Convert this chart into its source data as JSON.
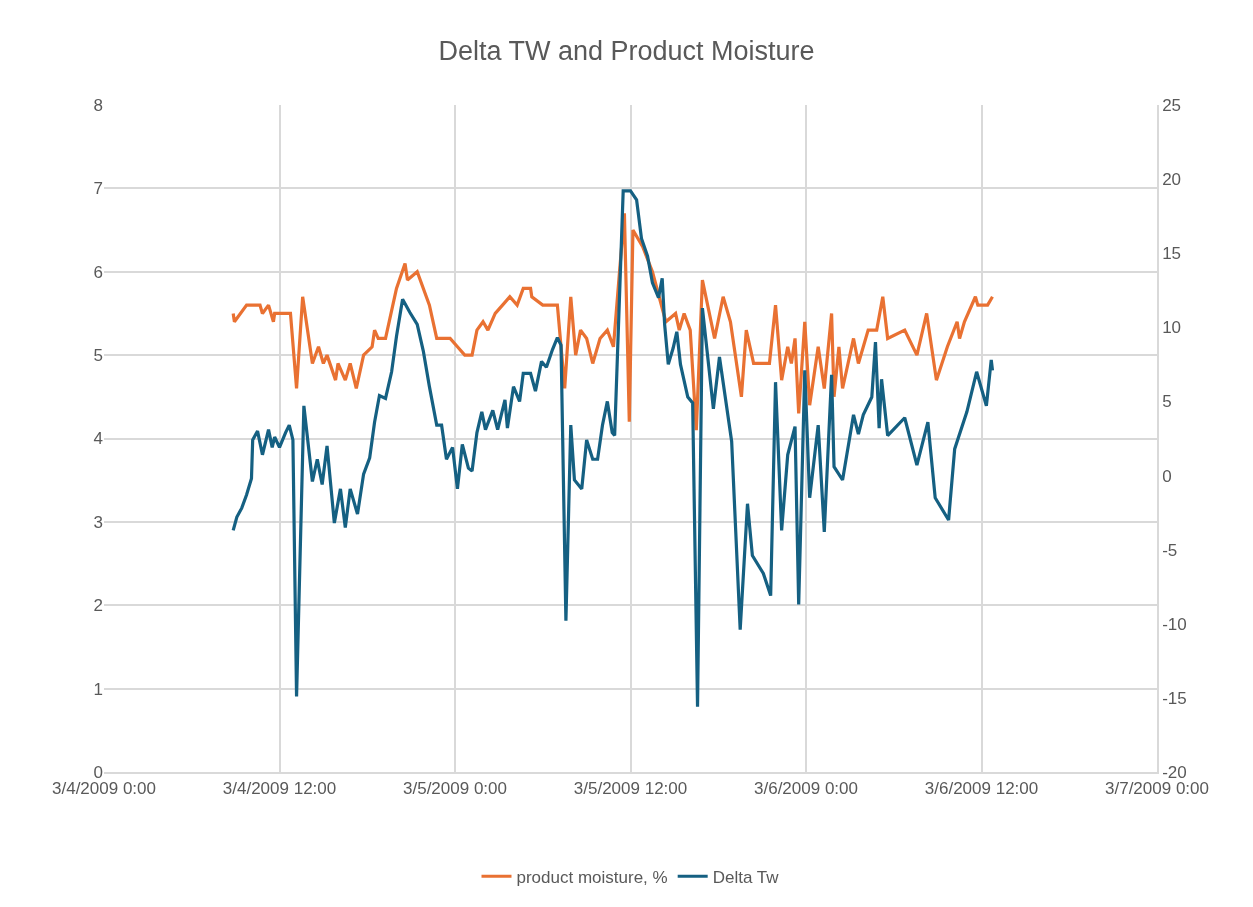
{
  "chart_data": {
    "type": "line",
    "title": "Delta TW and Product Moisture",
    "xlim": [
      "2009-03-04T00:00",
      "2009-03-07T00:00"
    ],
    "xticks": [
      {
        "value": "2009-03-04T00:00",
        "label": "3/4/2009 0:00"
      },
      {
        "value": "2009-03-04T12:00",
        "label": "3/4/2009 12:00"
      },
      {
        "value": "2009-03-05T00:00",
        "label": "3/5/2009 0:00"
      },
      {
        "value": "2009-03-05T12:00",
        "label": "3/5/2009 12:00"
      },
      {
        "value": "2009-03-06T00:00",
        "label": "3/6/2009 0:00"
      },
      {
        "value": "2009-03-06T12:00",
        "label": "3/6/2009 12:00"
      },
      {
        "value": "2009-03-07T00:00",
        "label": "3/7/2009 0:00"
      }
    ],
    "ylim": [
      0,
      8
    ],
    "yticks": [
      0,
      1,
      2,
      3,
      4,
      5,
      6,
      7,
      8
    ],
    "y2lim": [
      -20,
      25
    ],
    "y2ticks": [
      -20,
      -15,
      -10,
      -5,
      0,
      5,
      10,
      15,
      20,
      25
    ],
    "grid": true,
    "legend": "bottom",
    "marker": "none",
    "line_style": "solid",
    "series": [
      {
        "name": "product moisture, %",
        "color": "#e97132",
        "x": [
          "2009-03-04T08:50",
          "2009-03-04T08:55",
          "2009-03-04T09:45",
          "2009-03-04T10:40",
          "2009-03-04T10:50",
          "2009-03-04T11:15",
          "2009-03-04T11:35",
          "2009-03-04T11:40",
          "2009-03-04T12:45",
          "2009-03-04T13:10",
          "2009-03-04T13:35",
          "2009-03-04T14:15",
          "2009-03-04T14:40",
          "2009-03-04T15:00",
          "2009-03-04T15:15",
          "2009-03-04T15:50",
          "2009-03-04T16:00",
          "2009-03-04T16:30",
          "2009-03-04T16:50",
          "2009-03-04T17:15",
          "2009-03-04T17:45",
          "2009-03-04T18:20",
          "2009-03-04T18:30",
          "2009-03-04T18:45",
          "2009-03-04T19:15",
          "2009-03-04T20:00",
          "2009-03-04T20:35",
          "2009-03-04T20:45",
          "2009-03-04T21:25",
          "2009-03-04T22:15",
          "2009-03-04T22:45",
          "2009-03-04T23:40",
          "2009-03-05T00:10",
          "2009-03-05T00:40",
          "2009-03-05T01:10",
          "2009-03-05T01:30",
          "2009-03-05T01:55",
          "2009-03-05T02:15",
          "2009-03-05T02:45",
          "2009-03-05T03:15",
          "2009-03-05T03:45",
          "2009-03-05T04:15",
          "2009-03-05T04:40",
          "2009-03-05T05:10",
          "2009-03-05T05:15",
          "2009-03-05T06:00",
          "2009-03-05T07:00",
          "2009-03-05T07:30",
          "2009-03-05T07:55",
          "2009-03-05T08:15",
          "2009-03-05T08:35",
          "2009-03-05T09:00",
          "2009-03-05T09:25",
          "2009-03-05T09:55",
          "2009-03-05T10:25",
          "2009-03-05T10:50",
          "2009-03-05T11:15",
          "2009-03-05T11:35",
          "2009-03-05T11:55",
          "2009-03-05T12:10",
          "2009-03-05T12:50",
          "2009-03-05T13:30",
          "2009-03-05T14:25",
          "2009-03-05T15:05",
          "2009-03-05T15:20",
          "2009-03-05T15:40",
          "2009-03-05T16:05",
          "2009-03-05T16:30",
          "2009-03-05T16:55",
          "2009-03-05T17:45",
          "2009-03-05T18:20",
          "2009-03-05T18:50",
          "2009-03-05T19:05",
          "2009-03-05T19:35",
          "2009-03-05T19:55",
          "2009-03-05T20:25",
          "2009-03-05T21:30",
          "2009-03-05T21:55",
          "2009-03-05T22:20",
          "2009-03-05T22:45",
          "2009-03-05T23:00",
          "2009-03-05T23:15",
          "2009-03-05T23:30",
          "2009-03-05T23:55",
          "2009-03-06T00:15",
          "2009-03-06T00:50",
          "2009-03-06T01:15",
          "2009-03-06T01:45",
          "2009-03-06T01:55",
          "2009-03-06T02:15",
          "2009-03-06T02:30",
          "2009-03-06T03:15",
          "2009-03-06T03:35",
          "2009-03-06T04:15",
          "2009-03-06T04:50",
          "2009-03-06T05:15",
          "2009-03-06T05:35",
          "2009-03-06T06:45",
          "2009-03-06T07:35",
          "2009-03-06T08:15",
          "2009-03-06T08:55",
          "2009-03-06T09:40",
          "2009-03-06T10:20",
          "2009-03-06T10:30",
          "2009-03-06T10:50",
          "2009-03-06T11:35",
          "2009-03-06T11:45",
          "2009-03-06T12:25",
          "2009-03-06T12:45"
        ],
        "values": [
          5.5,
          5.4,
          5.6,
          5.6,
          5.5,
          5.6,
          5.4,
          5.5,
          5.5,
          4.6,
          5.7,
          4.9,
          5.1,
          4.9,
          5.0,
          4.7,
          4.9,
          4.7,
          4.9,
          4.6,
          5.0,
          5.1,
          5.3,
          5.2,
          5.2,
          5.8,
          6.1,
          5.9,
          6.0,
          5.6,
          5.2,
          5.2,
          5.1,
          5.0,
          5.0,
          5.3,
          5.4,
          5.3,
          5.5,
          5.6,
          5.7,
          5.6,
          5.8,
          5.8,
          5.7,
          5.6,
          5.6,
          4.6,
          5.7,
          5.0,
          5.3,
          5.2,
          4.9,
          5.2,
          5.3,
          5.1,
          6.0,
          6.7,
          4.2,
          6.5,
          6.3,
          6.0,
          5.4,
          5.5,
          5.3,
          5.5,
          5.3,
          4.1,
          5.9,
          5.2,
          5.7,
          5.4,
          5.1,
          4.5,
          5.3,
          4.9,
          4.9,
          5.6,
          4.7,
          5.1,
          4.9,
          5.2,
          4.3,
          5.4,
          4.4,
          5.1,
          4.6,
          5.5,
          4.5,
          5.1,
          4.6,
          5.2,
          4.9,
          5.3,
          5.3,
          5.7,
          5.2,
          5.3,
          5.0,
          5.5,
          4.7,
          5.1,
          5.4,
          5.2,
          5.4,
          5.7,
          5.6,
          5.6,
          5.7
        ]
      },
      {
        "name": "Delta Tw",
        "color": "#156082",
        "axis": "y2",
        "x": [
          "2009-03-04T08:50",
          "2009-03-04T09:05",
          "2009-03-04T09:25",
          "2009-03-04T09:45",
          "2009-03-04T10:05",
          "2009-03-04T10:10",
          "2009-03-04T10:30",
          "2009-03-04T10:50",
          "2009-03-04T11:15",
          "2009-03-04T11:30",
          "2009-03-04T11:40",
          "2009-03-04T12:00",
          "2009-03-04T12:25",
          "2009-03-04T12:40",
          "2009-03-04T12:55",
          "2009-03-04T13:10",
          "2009-03-04T13:40",
          "2009-03-04T14:15",
          "2009-03-04T14:35",
          "2009-03-04T14:55",
          "2009-03-04T15:15",
          "2009-03-04T15:45",
          "2009-03-04T16:10",
          "2009-03-04T16:30",
          "2009-03-04T16:50",
          "2009-03-04T17:20",
          "2009-03-04T17:45",
          "2009-03-04T18:10",
          "2009-03-04T18:30",
          "2009-03-04T18:50",
          "2009-03-04T19:15",
          "2009-03-04T19:40",
          "2009-03-04T20:00",
          "2009-03-04T20:25",
          "2009-03-04T20:55",
          "2009-03-04T21:25",
          "2009-03-04T21:50",
          "2009-03-04T22:15",
          "2009-03-04T22:45",
          "2009-03-04T23:05",
          "2009-03-04T23:25",
          "2009-03-04T23:50",
          "2009-03-05T00:10",
          "2009-03-05T00:30",
          "2009-03-05T00:55",
          "2009-03-05T01:10",
          "2009-03-05T01:30",
          "2009-03-05T01:50",
          "2009-03-05T02:05",
          "2009-03-05T02:35",
          "2009-03-05T02:55",
          "2009-03-05T03:25",
          "2009-03-05T03:35",
          "2009-03-05T04:00",
          "2009-03-05T04:25",
          "2009-03-05T04:40",
          "2009-03-05T05:10",
          "2009-03-05T05:30",
          "2009-03-05T05:55",
          "2009-03-05T06:15",
          "2009-03-05T06:40",
          "2009-03-05T07:00",
          "2009-03-05T07:15",
          "2009-03-05T07:35",
          "2009-03-05T07:55",
          "2009-03-05T08:10",
          "2009-03-05T08:40",
          "2009-03-05T09:00",
          "2009-03-05T09:25",
          "2009-03-05T09:45",
          "2009-03-05T10:05",
          "2009-03-05T10:25",
          "2009-03-05T10:45",
          "2009-03-05T10:55",
          "2009-03-05T11:30",
          "2009-03-05T12:00",
          "2009-03-05T12:25",
          "2009-03-05T12:45",
          "2009-03-05T13:10",
          "2009-03-05T13:30",
          "2009-03-05T13:55",
          "2009-03-05T14:10",
          "2009-03-05T14:20",
          "2009-03-05T14:35",
          "2009-03-05T14:55",
          "2009-03-05T15:10",
          "2009-03-05T15:25",
          "2009-03-05T15:55",
          "2009-03-05T16:15",
          "2009-03-05T16:35",
          "2009-03-05T16:55",
          "2009-03-05T17:40",
          "2009-03-05T18:05",
          "2009-03-05T18:55",
          "2009-03-05T19:30",
          "2009-03-05T20:00",
          "2009-03-05T20:20",
          "2009-03-05T21:05",
          "2009-03-05T21:35",
          "2009-03-05T21:55",
          "2009-03-05T22:20",
          "2009-03-05T22:45",
          "2009-03-05T23:15",
          "2009-03-05T23:30",
          "2009-03-05T23:55",
          "2009-03-06T00:15",
          "2009-03-06T00:50",
          "2009-03-06T01:15",
          "2009-03-06T01:45",
          "2009-03-06T01:55",
          "2009-03-06T02:30",
          "2009-03-06T03:15",
          "2009-03-06T03:35",
          "2009-03-06T03:55",
          "2009-03-06T04:30",
          "2009-03-06T04:45",
          "2009-03-06T05:00",
          "2009-03-06T05:10",
          "2009-03-06T05:35",
          "2009-03-06T06:45",
          "2009-03-06T07:35",
          "2009-03-06T08:20",
          "2009-03-06T08:50",
          "2009-03-06T09:45",
          "2009-03-06T10:10",
          "2009-03-06T11:00",
          "2009-03-06T11:40",
          "2009-03-06T12:20",
          "2009-03-06T12:40",
          "2009-03-06T12:45"
        ],
        "values": [
          -3.7,
          -2.8,
          -2.2,
          -1.3,
          -0.2,
          2.4,
          3.0,
          1.4,
          3.1,
          1.9,
          2.6,
          1.9,
          2.9,
          3.4,
          2.4,
          -14.9,
          4.7,
          -0.4,
          1.1,
          -0.6,
          2.0,
          -3.2,
          -0.9,
          -3.5,
          -0.9,
          -2.6,
          0.1,
          1.2,
          3.6,
          5.4,
          5.2,
          7.0,
          9.4,
          11.9,
          11.0,
          10.2,
          8.4,
          6.0,
          3.4,
          3.4,
          1.1,
          1.9,
          -0.9,
          2.1,
          0.5,
          0.3,
          2.9,
          4.3,
          3.1,
          4.4,
          3.1,
          5.1,
          3.2,
          6.0,
          5.0,
          6.9,
          6.9,
          5.7,
          7.7,
          7.3,
          8.5,
          9.3,
          8.8,
          -9.8,
          3.4,
          -0.3,
          -0.9,
          2.4,
          1.1,
          1.1,
          3.4,
          5.0,
          2.9,
          2.7,
          19.2,
          19.2,
          18.6,
          16.0,
          14.8,
          13.0,
          12.0,
          13.3,
          10.2,
          7.5,
          8.6,
          9.7,
          7.5,
          5.3,
          4.9,
          -15.6,
          11.3,
          4.5,
          8.0,
          2.3,
          -10.4,
          -1.9,
          -5.4,
          -6.6,
          -8.1,
          6.3,
          -3.7,
          1.4,
          3.3,
          -8.7,
          7.1,
          -1.5,
          3.4,
          -3.8,
          6.8,
          0.6,
          -0.3,
          4.1,
          2.8,
          4.1,
          5.3,
          9.0,
          3.2,
          6.5,
          2.7,
          3.9,
          0.7,
          3.6,
          -1.5,
          -3.0,
          1.8,
          4.3,
          7.0,
          4.7,
          7.8,
          7.1
        ]
      }
    ]
  }
}
